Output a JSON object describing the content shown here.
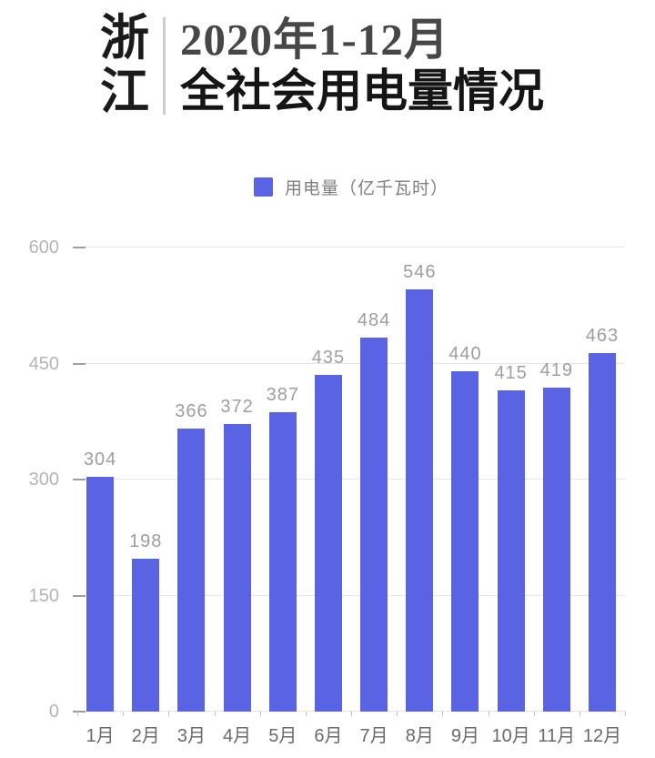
{
  "header": {
    "region": "浙江",
    "region_chars": [
      "浙",
      "江"
    ],
    "title_line1": "2020年1-12月",
    "title_line2": "全社会用电量情况"
  },
  "legend": {
    "label": "用电量（亿千瓦时）"
  },
  "chart_data": {
    "type": "bar",
    "title": "浙江 2020年1-12月 全社会用电量情况",
    "series_name": "用电量",
    "unit": "亿千瓦时",
    "categories": [
      "1月",
      "2月",
      "3月",
      "4月",
      "5月",
      "6月",
      "7月",
      "8月",
      "9月",
      "10月",
      "11月",
      "12月"
    ],
    "values": [
      304,
      198,
      366,
      372,
      387,
      435,
      484,
      546,
      440,
      415,
      419,
      463
    ],
    "xlabel": "",
    "ylabel": "",
    "ylim": [
      0,
      600
    ],
    "yticks": [
      0,
      150,
      300,
      450,
      600
    ],
    "grid": true,
    "legend_position": "top",
    "value_labels": true
  },
  "colors": {
    "bar": "#5a63e4",
    "value_label": "#9e9e9e",
    "y_tick_label": "#b5b5b5",
    "x_tick_label": "#6a6a6a",
    "gridline": "#e5e5e5",
    "axis_tick": "#9e9e9e",
    "title_primary": "#151515",
    "title_secondary": "#474747",
    "legend_text": "#7f7f7f",
    "divider": "#cccccc",
    "background": "#ffffff"
  }
}
